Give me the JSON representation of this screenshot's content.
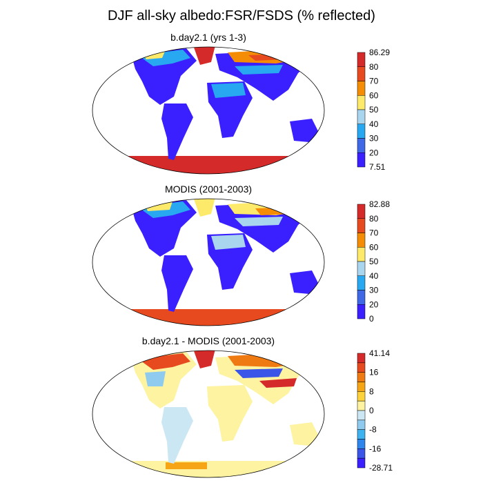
{
  "title": "DJF all-sky albedo:FSR/FSDS (% reflected)",
  "panels": [
    {
      "title": "b.day2.1 (yrs 1-3)",
      "colorbar": {
        "labels": [
          "86.29",
          "80",
          "70",
          "60",
          "50",
          "40",
          "30",
          "20",
          "7.51"
        ],
        "colors": [
          "#d42a2a",
          "#e64a1e",
          "#f48c06",
          "#fde96a",
          "#a9d6ee",
          "#28a8f0",
          "#3f68e6",
          "#3a1fff"
        ]
      }
    },
    {
      "title": "MODIS (2001-2003)",
      "colorbar": {
        "labels": [
          "82.88",
          "80",
          "70",
          "60",
          "50",
          "40",
          "30",
          "20",
          "0"
        ],
        "colors": [
          "#d42a2a",
          "#e64a1e",
          "#f48c06",
          "#fde96a",
          "#a9d6ee",
          "#28a8f0",
          "#3f68e6",
          "#3a1fff"
        ]
      }
    },
    {
      "title": "b.day2.1 - MODIS (2001-2003)",
      "colorbar": {
        "labels": [
          "41.14",
          "16",
          "8",
          "0",
          "-8",
          "-16",
          "-28.71"
        ],
        "colors": [
          "#d42a2a",
          "#e64a1e",
          "#f07a12",
          "#f6a614",
          "#fdd23a",
          "#fdf3a0",
          "#cce7f4",
          "#8fcbee",
          "#3fb2f0",
          "#2e86ec",
          "#3a55e8",
          "#3a1fff"
        ]
      }
    }
  ]
}
